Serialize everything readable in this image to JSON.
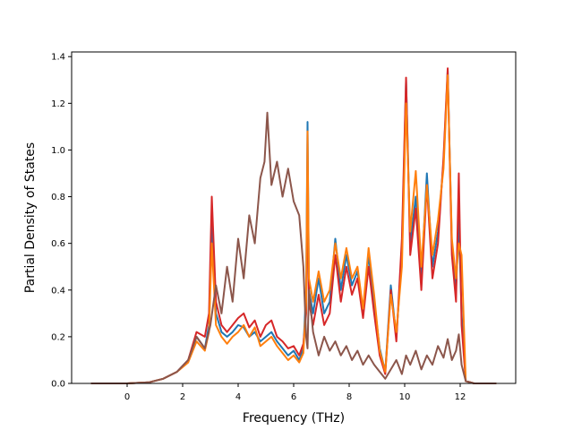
{
  "chart_data": {
    "type": "line",
    "title": "",
    "xlabel": "Frequency (THz)",
    "ylabel": "Partial Density of States",
    "xlim": [
      -2,
      14
    ],
    "ylim": [
      0,
      1.42
    ],
    "xticks": [
      0,
      2,
      4,
      6,
      8,
      10,
      12
    ],
    "xtick_labels": [
      "0",
      "2",
      "4",
      "6",
      "8",
      "10",
      "12"
    ],
    "yticks": [
      0.0,
      0.2,
      0.4,
      0.6,
      0.8,
      1.0,
      1.2,
      1.4
    ],
    "ytick_labels": [
      "0.0",
      "0.2",
      "0.4",
      "0.6",
      "0.8",
      "1.0",
      "1.2",
      "1.4"
    ],
    "grid": false,
    "legend": "none",
    "series": [
      {
        "color": "#1f77b4",
        "x": [
          -1.3,
          0,
          0.8,
          1.3,
          1.8,
          2.2,
          2.5,
          2.8,
          2.95,
          3.05,
          3.2,
          3.4,
          3.6,
          3.8,
          4.0,
          4.2,
          4.4,
          4.6,
          4.8,
          5.0,
          5.2,
          5.4,
          5.6,
          5.8,
          6.0,
          6.2,
          6.35,
          6.45,
          6.5,
          6.55,
          6.7,
          6.9,
          7.1,
          7.3,
          7.5,
          7.7,
          7.9,
          8.1,
          8.3,
          8.5,
          8.7,
          8.9,
          9.1,
          9.3,
          9.5,
          9.7,
          9.9,
          10.05,
          10.2,
          10.4,
          10.6,
          10.8,
          11.0,
          11.2,
          11.4,
          11.55,
          11.7,
          11.85,
          11.95,
          12.05,
          12.2,
          12.5,
          13.3
        ],
        "y": [
          0.0,
          0.0,
          0.005,
          0.02,
          0.05,
          0.1,
          0.2,
          0.15,
          0.25,
          0.72,
          0.3,
          0.22,
          0.2,
          0.22,
          0.25,
          0.24,
          0.2,
          0.22,
          0.18,
          0.2,
          0.22,
          0.18,
          0.15,
          0.12,
          0.14,
          0.1,
          0.15,
          0.4,
          1.12,
          0.4,
          0.3,
          0.45,
          0.3,
          0.35,
          0.62,
          0.4,
          0.55,
          0.42,
          0.48,
          0.3,
          0.55,
          0.35,
          0.15,
          0.05,
          0.42,
          0.2,
          0.55,
          1.3,
          0.6,
          0.8,
          0.45,
          0.9,
          0.5,
          0.65,
          0.95,
          1.34,
          0.6,
          0.4,
          0.7,
          0.3,
          0.01,
          0.0,
          0.0
        ]
      },
      {
        "color": "#d62728",
        "x": [
          -1.3,
          0,
          0.8,
          1.3,
          1.8,
          2.2,
          2.5,
          2.8,
          2.95,
          3.05,
          3.2,
          3.4,
          3.6,
          3.8,
          4.0,
          4.2,
          4.4,
          4.6,
          4.8,
          5.0,
          5.2,
          5.4,
          5.6,
          5.8,
          6.0,
          6.2,
          6.35,
          6.45,
          6.5,
          6.55,
          6.7,
          6.9,
          7.1,
          7.3,
          7.5,
          7.7,
          7.9,
          8.1,
          8.3,
          8.5,
          8.7,
          8.9,
          9.1,
          9.3,
          9.5,
          9.7,
          9.9,
          10.05,
          10.2,
          10.4,
          10.6,
          10.8,
          11.0,
          11.2,
          11.4,
          11.55,
          11.7,
          11.85,
          11.95,
          12.05,
          12.2,
          12.5,
          13.3
        ],
        "y": [
          0.0,
          0.0,
          0.005,
          0.02,
          0.05,
          0.1,
          0.22,
          0.2,
          0.3,
          0.8,
          0.35,
          0.25,
          0.22,
          0.25,
          0.28,
          0.3,
          0.24,
          0.27,
          0.2,
          0.25,
          0.27,
          0.2,
          0.18,
          0.15,
          0.16,
          0.12,
          0.17,
          0.3,
          0.87,
          0.35,
          0.25,
          0.38,
          0.25,
          0.3,
          0.55,
          0.35,
          0.5,
          0.38,
          0.45,
          0.28,
          0.5,
          0.3,
          0.12,
          0.04,
          0.4,
          0.18,
          0.62,
          1.31,
          0.55,
          0.75,
          0.4,
          0.85,
          0.45,
          0.6,
          0.97,
          1.35,
          0.55,
          0.35,
          0.9,
          0.25,
          0.01,
          0.0,
          0.0
        ]
      },
      {
        "color": "#ff7f0e",
        "x": [
          -1.3,
          0,
          0.8,
          1.3,
          1.8,
          2.2,
          2.5,
          2.8,
          2.95,
          3.05,
          3.2,
          3.4,
          3.6,
          3.8,
          4.0,
          4.2,
          4.4,
          4.6,
          4.8,
          5.0,
          5.2,
          5.4,
          5.6,
          5.8,
          6.0,
          6.2,
          6.35,
          6.45,
          6.5,
          6.55,
          6.7,
          6.9,
          7.1,
          7.3,
          7.5,
          7.7,
          7.9,
          8.1,
          8.3,
          8.5,
          8.7,
          8.9,
          9.1,
          9.3,
          9.5,
          9.7,
          9.9,
          10.05,
          10.2,
          10.4,
          10.6,
          10.8,
          11.0,
          11.2,
          11.4,
          11.55,
          11.7,
          11.85,
          11.95,
          12.05,
          12.2,
          12.5,
          13.3
        ],
        "y": [
          0.0,
          0.0,
          0.005,
          0.02,
          0.05,
          0.09,
          0.18,
          0.14,
          0.22,
          0.6,
          0.25,
          0.2,
          0.17,
          0.2,
          0.22,
          0.25,
          0.2,
          0.24,
          0.16,
          0.18,
          0.2,
          0.16,
          0.13,
          0.1,
          0.12,
          0.09,
          0.13,
          0.35,
          1.08,
          0.45,
          0.35,
          0.48,
          0.35,
          0.4,
          0.6,
          0.45,
          0.58,
          0.45,
          0.5,
          0.32,
          0.58,
          0.38,
          0.14,
          0.05,
          0.38,
          0.22,
          0.5,
          1.2,
          0.65,
          0.91,
          0.5,
          0.85,
          0.55,
          0.7,
          0.92,
          1.32,
          0.62,
          0.45,
          0.6,
          0.55,
          0.01,
          0.0,
          0.0
        ]
      },
      {
        "color": "#8c564b",
        "x": [
          -1.3,
          0,
          0.8,
          1.3,
          1.8,
          2.2,
          2.5,
          2.8,
          3.0,
          3.2,
          3.4,
          3.6,
          3.8,
          4.0,
          4.2,
          4.4,
          4.6,
          4.8,
          4.95,
          5.05,
          5.2,
          5.4,
          5.6,
          5.8,
          6.0,
          6.2,
          6.35,
          6.45,
          6.5,
          6.55,
          6.7,
          6.9,
          7.1,
          7.3,
          7.5,
          7.7,
          7.9,
          8.1,
          8.3,
          8.5,
          8.7,
          8.9,
          9.1,
          9.3,
          9.5,
          9.7,
          9.9,
          10.05,
          10.2,
          10.4,
          10.6,
          10.8,
          11.0,
          11.2,
          11.4,
          11.55,
          11.7,
          11.85,
          11.95,
          12.05,
          12.2,
          12.5,
          13.3
        ],
        "y": [
          0.0,
          0.0,
          0.005,
          0.02,
          0.05,
          0.1,
          0.2,
          0.15,
          0.25,
          0.42,
          0.3,
          0.5,
          0.35,
          0.62,
          0.45,
          0.72,
          0.6,
          0.88,
          0.95,
          1.16,
          0.85,
          0.95,
          0.8,
          0.92,
          0.78,
          0.72,
          0.5,
          0.2,
          0.15,
          0.4,
          0.22,
          0.12,
          0.2,
          0.14,
          0.18,
          0.12,
          0.16,
          0.1,
          0.14,
          0.08,
          0.12,
          0.08,
          0.05,
          0.02,
          0.06,
          0.1,
          0.04,
          0.12,
          0.08,
          0.14,
          0.06,
          0.12,
          0.08,
          0.16,
          0.11,
          0.19,
          0.1,
          0.14,
          0.21,
          0.08,
          0.01,
          0.0,
          0.0
        ]
      }
    ]
  }
}
